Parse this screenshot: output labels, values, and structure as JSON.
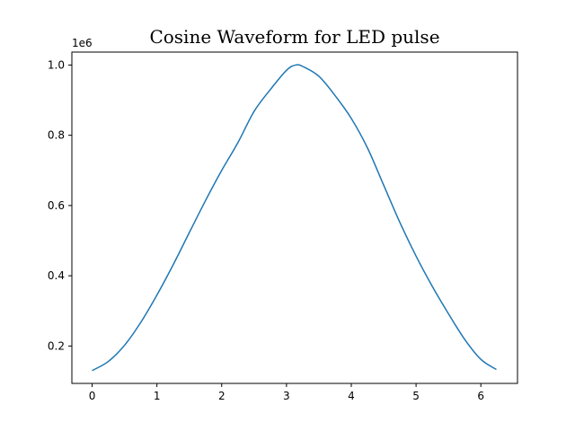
{
  "chart_data": {
    "type": "line",
    "title": "Cosine Waveform for LED pulse",
    "xlabel": "",
    "ylabel": "",
    "y_offset_label": "1e6",
    "xlim": [
      -0.3125,
      6.5657
    ],
    "ylim": [
      0.0935,
      1.0369
    ],
    "xticks": [
      0,
      1,
      2,
      3,
      4,
      5,
      6
    ],
    "xtick_labels": [
      "0",
      "1",
      "2",
      "3",
      "4",
      "5",
      "6"
    ],
    "yticks": [
      0.2,
      0.4,
      0.6,
      0.8,
      1.0
    ],
    "ytick_labels": [
      "0.2",
      "0.4",
      "0.6",
      "0.8",
      "1.0"
    ],
    "grid": false,
    "legend": "none",
    "series": [
      {
        "color": "#1f77b4",
        "x": [
          0.0,
          0.25,
          0.5,
          0.75,
          1.0,
          1.25,
          1.5,
          1.75,
          2.0,
          2.25,
          2.5,
          2.75,
          3.0,
          3.14,
          3.25,
          3.5,
          3.75,
          4.0,
          4.25,
          4.5,
          4.75,
          5.0,
          5.25,
          5.5,
          5.75,
          6.0,
          6.24
        ],
        "y": [
          0.13,
          0.156,
          0.202,
          0.267,
          0.345,
          0.431,
          0.523,
          0.614,
          0.7,
          0.779,
          0.868,
          0.93,
          0.985,
          1.0,
          0.996,
          0.968,
          0.913,
          0.848,
          0.764,
          0.658,
          0.552,
          0.456,
          0.37,
          0.292,
          0.219,
          0.162,
          0.133
        ]
      }
    ]
  }
}
